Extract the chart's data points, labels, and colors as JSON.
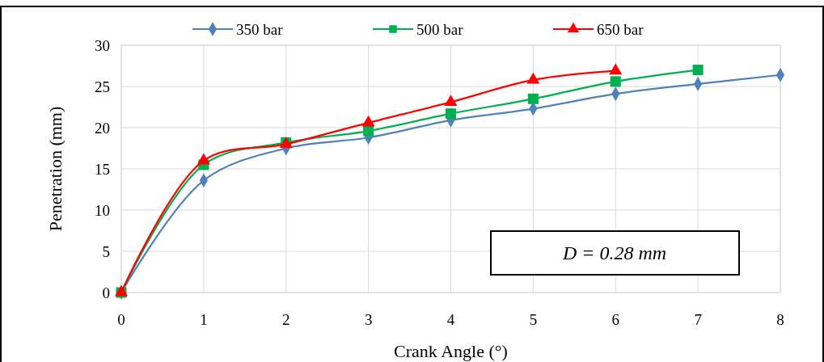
{
  "chart_data": {
    "type": "line",
    "xlabel": "Crank Angle (°)",
    "ylabel": "Penetration (mm)",
    "x": [
      0,
      1,
      2,
      3,
      4,
      5,
      6,
      7,
      8
    ],
    "xlim": [
      0,
      8
    ],
    "xticks": [
      0,
      1,
      2,
      3,
      4,
      5,
      6,
      7,
      8
    ],
    "ylim": [
      0,
      30
    ],
    "yticks": [
      0,
      5,
      10,
      15,
      20,
      25,
      30
    ],
    "grid": true,
    "legend": "top",
    "annotations": [
      "D = 0.28 mm"
    ],
    "series": [
      {
        "name": "350 bar",
        "color": "#4f81bd",
        "marker": "diamond",
        "values": [
          0,
          13.6,
          17.5,
          18.8,
          20.9,
          22.3,
          24.1,
          25.3,
          26.4
        ]
      },
      {
        "name": "500 bar",
        "color": "#00b050",
        "marker": "square",
        "x": [
          0,
          1,
          2,
          3,
          4,
          5,
          6,
          7
        ],
        "values": [
          0,
          15.5,
          18.2,
          19.6,
          21.7,
          23.5,
          25.6,
          27.0
        ]
      },
      {
        "name": "650 bar",
        "color": "#ff0000",
        "marker": "triangle",
        "x": [
          0,
          1,
          2,
          3,
          4,
          5,
          6
        ],
        "values": [
          0,
          16.0,
          18.0,
          20.6,
          23.1,
          25.8,
          26.9
        ]
      }
    ]
  }
}
